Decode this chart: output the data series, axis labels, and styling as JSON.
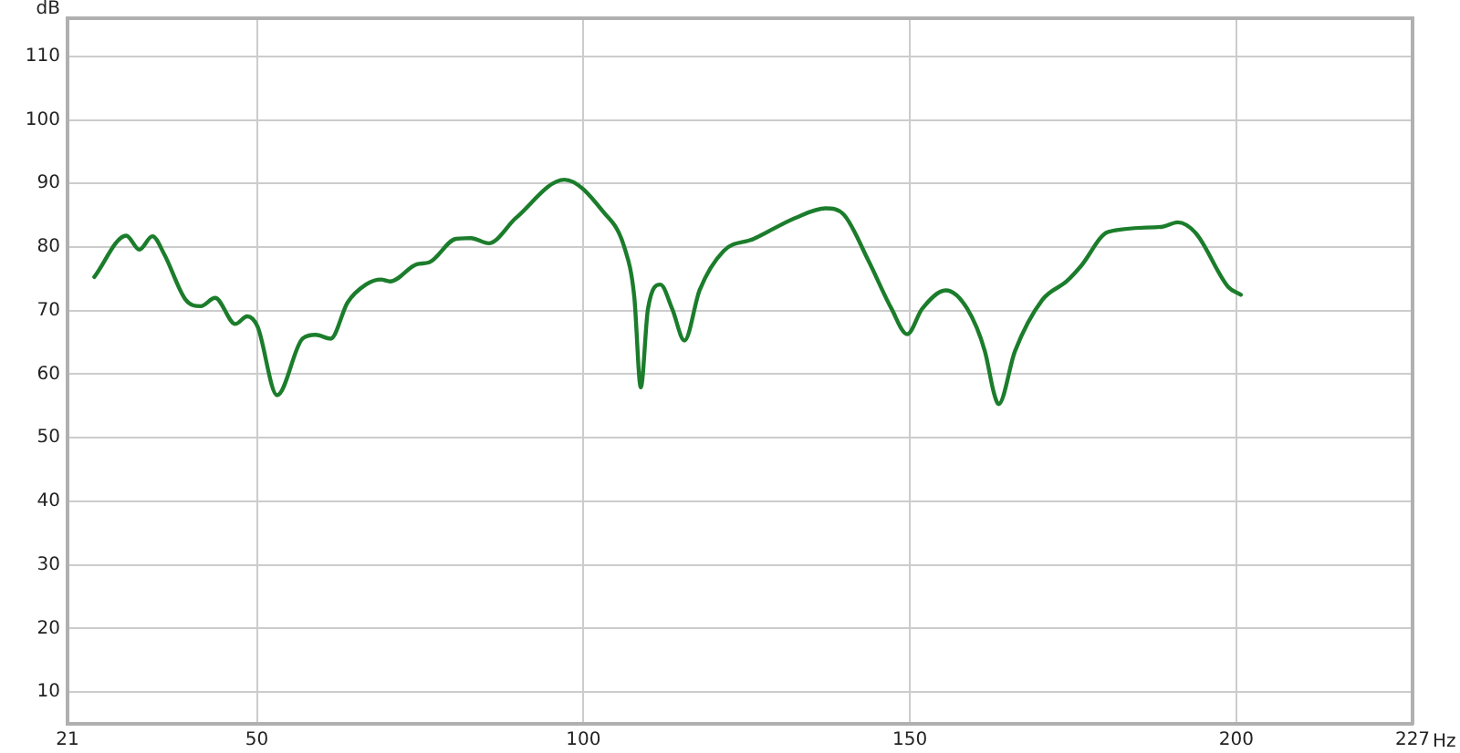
{
  "chart_data": {
    "type": "line",
    "xlabel": "Hz",
    "ylabel": "dB",
    "xlim": [
      21,
      227
    ],
    "xticks": [
      21,
      50,
      100,
      150,
      200,
      227
    ],
    "ylim": [
      5,
      116
    ],
    "yticks": [
      10,
      20,
      30,
      40,
      50,
      60,
      70,
      80,
      90,
      100,
      110
    ],
    "grid": true,
    "legend": false,
    "marker": "none",
    "line_style": "solid",
    "series": [
      {
        "color": "#1b7d2b",
        "x": [
          25.1,
          30.0,
          32.0,
          34.0,
          35.8,
          39.1,
          41.4,
          43.6,
          46.7,
          48.5,
          50.1,
          53.1,
          57.0,
          59.0,
          61.3,
          63.9,
          66.7,
          69.0,
          70.4,
          74.5,
          76.4,
          80.5,
          82.8,
          85.5,
          89.7,
          97.1,
          103.0,
          106.3,
          107.8,
          108.8,
          109.9,
          111.8,
          113.6,
          115.5,
          117.8,
          121.5,
          126.1,
          132.5,
          137.1,
          139.9,
          143.6,
          147.2,
          149.6,
          151.9,
          155.5,
          158.8,
          161.5,
          162.9,
          163.6,
          166.1,
          170.3,
          174.0,
          176.2,
          180.4,
          188.7,
          191.0,
          193.8,
          198.8,
          200.7
        ],
        "values": [
          75.3,
          81.8,
          79.6,
          81.7,
          78.9,
          71.7,
          70.7,
          72.0,
          67.9,
          69.1,
          67.5,
          56.7,
          65.6,
          66.2,
          65.6,
          71.3,
          74.1,
          74.9,
          74.6,
          77.3,
          77.6,
          81.3,
          81.4,
          80.6,
          84.6,
          90.6,
          85.6,
          79.9,
          72.2,
          57.9,
          70.3,
          74.1,
          70.3,
          65.3,
          73.2,
          79.4,
          81.3,
          84.6,
          86.1,
          85.1,
          78.0,
          70.3,
          66.3,
          70.3,
          73.2,
          70.3,
          63.6,
          57.0,
          55.3,
          63.6,
          71.7,
          74.6,
          77.0,
          82.4,
          83.2,
          83.9,
          82.2,
          73.7,
          72.5
        ]
      }
    ]
  }
}
